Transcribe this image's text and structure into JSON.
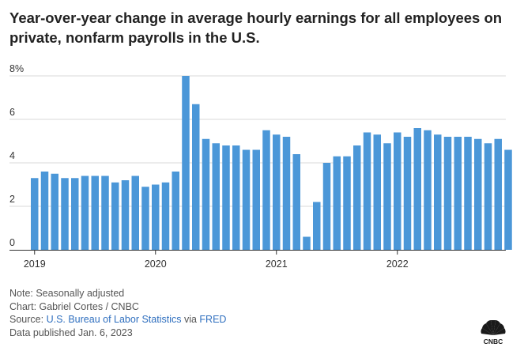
{
  "header": {
    "title": "Year-over-year change in average hourly earnings for all employees on private, nonfarm payrolls in the U.S."
  },
  "footer": {
    "note": "Note: Seasonally adjusted",
    "chart_credit": "Chart: Gabriel Cortes / CNBC",
    "source_prefix": "Source: ",
    "source_bls": "U.S. Bureau of Labor Statistics",
    "source_via": " via ",
    "source_fred": "FRED",
    "published": "Data published Jan. 6, 2023"
  },
  "logo": {
    "text": "CNBC"
  },
  "colors": {
    "bar": "#4b97d8",
    "grid": "#d9d9d9",
    "axis": "#333333",
    "link": "#2f6fbf"
  },
  "chart_data": {
    "type": "bar",
    "title": "Year-over-year change in average hourly earnings for all employees on private, nonfarm payrolls in the U.S.",
    "xlabel": "",
    "ylabel": "",
    "ylim": [
      0,
      8
    ],
    "y_ticks": [
      {
        "value": 0,
        "label": "0"
      },
      {
        "value": 2,
        "label": "2"
      },
      {
        "value": 4,
        "label": "4"
      },
      {
        "value": 6,
        "label": "6"
      },
      {
        "value": 8,
        "label": "8%"
      }
    ],
    "x_ticks": [
      {
        "index": 0,
        "label": "2019"
      },
      {
        "index": 12,
        "label": "2020"
      },
      {
        "index": 24,
        "label": "2021"
      },
      {
        "index": 36,
        "label": "2022"
      }
    ],
    "grid": true,
    "categories": [
      "Jan 2019",
      "Feb 2019",
      "Mar 2019",
      "Apr 2019",
      "May 2019",
      "Jun 2019",
      "Jul 2019",
      "Aug 2019",
      "Sep 2019",
      "Oct 2019",
      "Nov 2019",
      "Dec 2019",
      "Jan 2020",
      "Feb 2020",
      "Mar 2020",
      "Apr 2020",
      "May 2020",
      "Jun 2020",
      "Jul 2020",
      "Aug 2020",
      "Sep 2020",
      "Oct 2020",
      "Nov 2020",
      "Dec 2020",
      "Jan 2021",
      "Feb 2021",
      "Mar 2021",
      "Apr 2021",
      "May 2021",
      "Jun 2021",
      "Jul 2021",
      "Aug 2021",
      "Sep 2021",
      "Oct 2021",
      "Nov 2021",
      "Dec 2021",
      "Jan 2022",
      "Feb 2022",
      "Mar 2022",
      "Apr 2022",
      "May 2022",
      "Jun 2022",
      "Jul 2022",
      "Aug 2022",
      "Sep 2022",
      "Oct 2022",
      "Nov 2022",
      "Dec 2022"
    ],
    "values": [
      3.3,
      3.6,
      3.5,
      3.3,
      3.3,
      3.4,
      3.4,
      3.4,
      3.1,
      3.2,
      3.4,
      2.9,
      3.0,
      3.1,
      3.6,
      8.0,
      6.7,
      5.1,
      4.9,
      4.8,
      4.8,
      4.6,
      4.6,
      5.5,
      5.3,
      5.2,
      4.4,
      0.6,
      2.2,
      4.0,
      4.3,
      4.3,
      4.8,
      5.4,
      5.3,
      4.9,
      5.4,
      5.2,
      5.6,
      5.5,
      5.3,
      5.2,
      5.2,
      5.2,
      5.1,
      4.9,
      5.1,
      4.6
    ]
  }
}
